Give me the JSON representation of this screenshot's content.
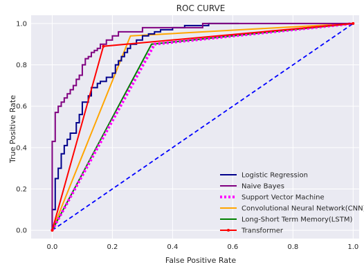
{
  "chart_data": {
    "type": "line",
    "title": "ROC CURVE",
    "xlabel": "False Positive Rate",
    "ylabel": "True Positive Rate",
    "xlim": [
      -0.07,
      1.02
    ],
    "ylim": [
      -0.04,
      1.04
    ],
    "xticks": [
      "0.0",
      "0.2",
      "0.4",
      "0.6",
      "0.8",
      "1.0"
    ],
    "yticks": [
      "0.0",
      "0.2",
      "0.4",
      "0.6",
      "0.8",
      "1.0"
    ],
    "grid": true,
    "background": "#eaeaf2",
    "legend_position": "lower-right",
    "series": [
      {
        "name": "Logistic Regression",
        "color": "#00008b",
        "style": "solid",
        "x": [
          0.0,
          0.0,
          0.01,
          0.01,
          0.02,
          0.02,
          0.03,
          0.03,
          0.04,
          0.04,
          0.05,
          0.05,
          0.06,
          0.06,
          0.08,
          0.08,
          0.09,
          0.09,
          0.1,
          0.1,
          0.12,
          0.12,
          0.13,
          0.13,
          0.15,
          0.15,
          0.16,
          0.16,
          0.18,
          0.18,
          0.2,
          0.2,
          0.21,
          0.21,
          0.22,
          0.22,
          0.23,
          0.23,
          0.24,
          0.24,
          0.25,
          0.25,
          0.26,
          0.26,
          0.28,
          0.28,
          0.3,
          0.3,
          0.32,
          0.32,
          0.34,
          0.34,
          0.36,
          0.36,
          0.4,
          0.4,
          0.44,
          0.44,
          0.48,
          0.48,
          0.52,
          0.52,
          0.62
        ],
        "y": [
          0.0,
          0.1,
          0.1,
          0.25,
          0.25,
          0.3,
          0.3,
          0.37,
          0.37,
          0.41,
          0.41,
          0.44,
          0.44,
          0.47,
          0.47,
          0.52,
          0.52,
          0.56,
          0.56,
          0.62,
          0.62,
          0.65,
          0.65,
          0.69,
          0.69,
          0.71,
          0.71,
          0.72,
          0.72,
          0.74,
          0.74,
          0.76,
          0.76,
          0.8,
          0.8,
          0.82,
          0.82,
          0.84,
          0.84,
          0.86,
          0.86,
          0.88,
          0.88,
          0.9,
          0.9,
          0.92,
          0.92,
          0.94,
          0.94,
          0.95,
          0.95,
          0.96,
          0.96,
          0.97,
          0.97,
          0.98,
          0.98,
          0.99,
          0.99,
          0.99,
          0.99,
          1.0,
          1.0
        ]
      },
      {
        "name": "Naive Bayes",
        "color": "#800080",
        "style": "solid",
        "x": [
          0.0,
          0.0,
          0.01,
          0.01,
          0.02,
          0.02,
          0.03,
          0.03,
          0.04,
          0.04,
          0.05,
          0.05,
          0.06,
          0.06,
          0.07,
          0.07,
          0.08,
          0.08,
          0.09,
          0.09,
          0.1,
          0.1,
          0.11,
          0.11,
          0.12,
          0.12,
          0.13,
          0.13,
          0.14,
          0.14,
          0.15,
          0.15,
          0.16,
          0.16,
          0.18,
          0.18,
          0.2,
          0.2,
          0.22,
          0.22,
          0.3,
          0.3,
          0.5,
          0.5,
          1.0
        ],
        "y": [
          0.0,
          0.43,
          0.43,
          0.57,
          0.57,
          0.6,
          0.6,
          0.62,
          0.62,
          0.64,
          0.64,
          0.66,
          0.66,
          0.68,
          0.68,
          0.7,
          0.7,
          0.73,
          0.73,
          0.75,
          0.75,
          0.8,
          0.8,
          0.83,
          0.83,
          0.84,
          0.84,
          0.86,
          0.86,
          0.87,
          0.87,
          0.88,
          0.88,
          0.9,
          0.9,
          0.92,
          0.92,
          0.94,
          0.94,
          0.96,
          0.96,
          0.98,
          0.98,
          1.0,
          1.0
        ]
      },
      {
        "name": "Support Vector Machine",
        "color": "#ff00ff",
        "style": "dotted",
        "x": [
          0.0,
          0.34,
          1.0
        ],
        "y": [
          0.0,
          0.9,
          1.0
        ]
      },
      {
        "name": "Convolutional Neural Network(CNN)",
        "color": "#ffa500",
        "style": "solid",
        "x": [
          0.0,
          0.26,
          1.0
        ],
        "y": [
          0.0,
          0.94,
          1.0
        ]
      },
      {
        "name": "Long-Short Term Memory(LSTM)",
        "color": "#008000",
        "style": "solid",
        "x": [
          0.0,
          0.33,
          1.0
        ],
        "y": [
          0.0,
          0.9,
          1.0
        ]
      },
      {
        "name": "Transformer",
        "color": "#ff0000",
        "style": "solid-marker",
        "x": [
          0.0,
          0.17,
          1.0
        ],
        "y": [
          0.0,
          0.89,
          1.0
        ]
      },
      {
        "name": "",
        "color": "#0000ff",
        "style": "dashed",
        "x": [
          0.0,
          1.0
        ],
        "y": [
          0.0,
          1.0
        ]
      }
    ]
  }
}
